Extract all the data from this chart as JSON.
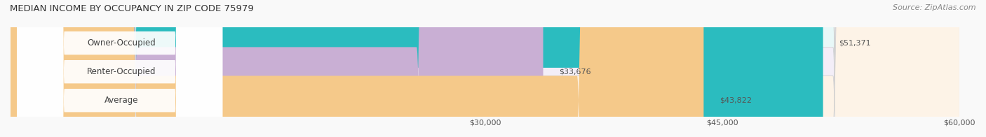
{
  "title": "MEDIAN INCOME BY OCCUPANCY IN ZIP CODE 75979",
  "source": "Source: ZipAtlas.com",
  "categories": [
    "Owner-Occupied",
    "Renter-Occupied",
    "Average"
  ],
  "values": [
    51371,
    33676,
    43822
  ],
  "labels": [
    "$51,371",
    "$33,676",
    "$43,822"
  ],
  "bar_colors": [
    "#2bbcbf",
    "#c9afd4",
    "#f5c98a"
  ],
  "bar_bg_colors": [
    "#e8f8f8",
    "#f3eef8",
    "#fdf3e7"
  ],
  "xlim": [
    0,
    60000
  ],
  "xticks": [
    30000,
    45000,
    60000
  ],
  "xtick_labels": [
    "$30,000",
    "$45,000",
    "$60,000"
  ],
  "figsize": [
    14.06,
    1.96
  ],
  "dpi": 100
}
